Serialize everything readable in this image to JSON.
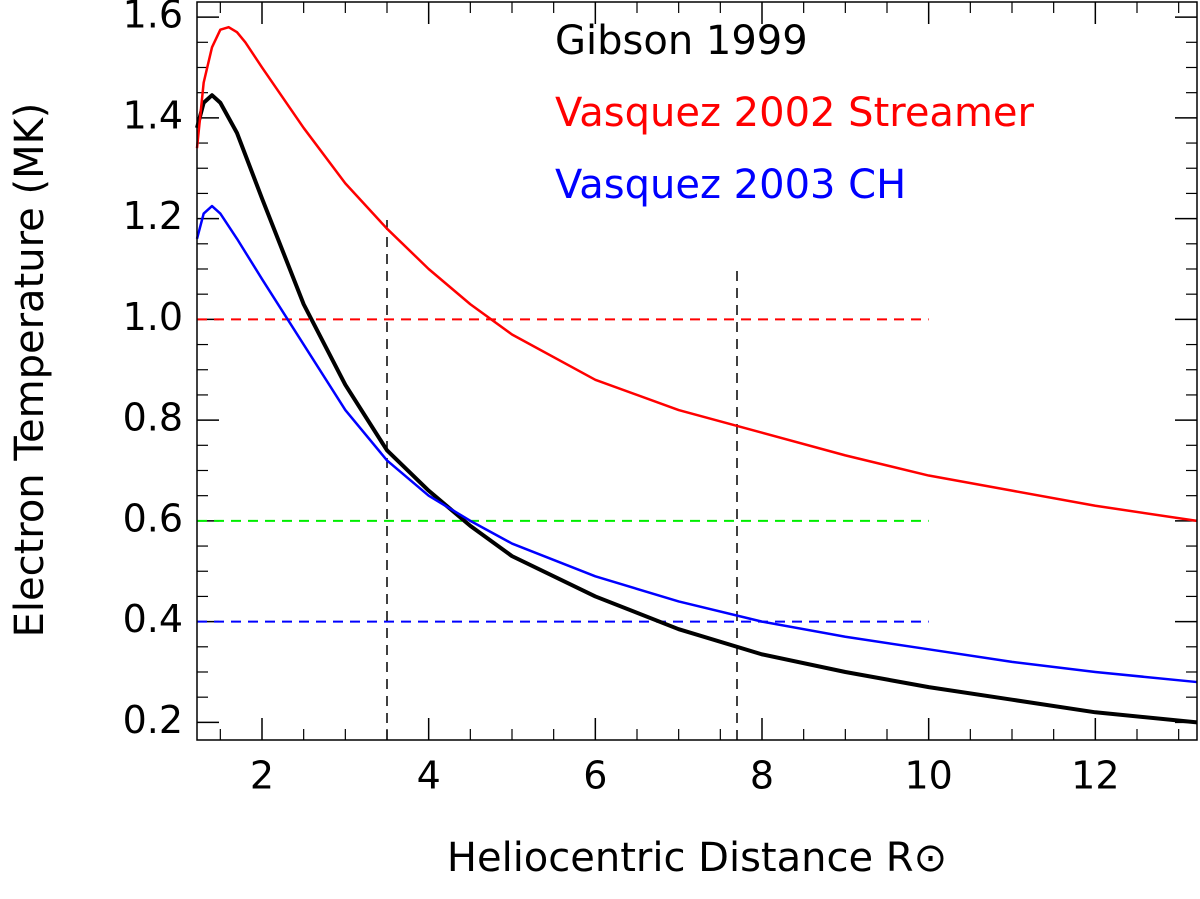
{
  "chart_data": {
    "type": "line",
    "x_label": "Heliocentric Distance R⊙",
    "y_label": "Electron Temperature (MK)",
    "xlim": [
      1.22,
      13.22
    ],
    "ylim": [
      0.165,
      1.63
    ],
    "xticks": [
      2,
      4,
      6,
      8,
      10,
      12
    ],
    "yticks": [
      {
        "value": 0.2,
        "label": "0.2"
      },
      {
        "value": 0.4,
        "label": "0.4"
      },
      {
        "value": 0.6,
        "label": "0.6"
      },
      {
        "value": 0.8,
        "label": "0.8"
      },
      {
        "value": 1.0,
        "label": "1.0"
      },
      {
        "value": 1.2,
        "label": "1.2"
      },
      {
        "value": 1.4,
        "label": "1.4"
      },
      {
        "value": 1.6,
        "label": "1.6"
      }
    ],
    "xminor": [
      1.5,
      2.5,
      3,
      3.5,
      4.5,
      5,
      5.5,
      6.5,
      7,
      7.5,
      8.5,
      9,
      9.5,
      10.5,
      11,
      11.5,
      12.5,
      13
    ],
    "yminor": [
      0.25,
      0.3,
      0.35,
      0.45,
      0.5,
      0.55,
      0.65,
      0.7,
      0.75,
      0.85,
      0.9,
      0.95,
      1.05,
      1.1,
      1.15,
      1.25,
      1.3,
      1.35,
      1.45,
      1.5,
      1.55
    ],
    "series": [
      {
        "name": "Gibson 1999",
        "color": "#000000",
        "width": 4,
        "x": [
          1.22,
          1.3,
          1.4,
          1.5,
          1.7,
          2.0,
          2.5,
          3.0,
          3.5,
          4.0,
          4.5,
          5,
          6,
          7,
          8,
          9,
          10,
          11,
          12,
          13.22
        ],
        "values": [
          1.38,
          1.43,
          1.445,
          1.43,
          1.37,
          1.24,
          1.03,
          0.87,
          0.74,
          0.66,
          0.59,
          0.53,
          0.45,
          0.385,
          0.335,
          0.3,
          0.27,
          0.245,
          0.22,
          0.2
        ]
      },
      {
        "name": "Vasquez 2002 Streamer",
        "color": "#ff0000",
        "width": 2.5,
        "x": [
          1.22,
          1.3,
          1.4,
          1.5,
          1.6,
          1.7,
          1.8,
          2.0,
          2.5,
          3.0,
          3.5,
          4.0,
          4.5,
          5,
          6,
          7,
          8,
          9,
          10,
          11,
          12,
          13.22
        ],
        "values": [
          1.34,
          1.47,
          1.54,
          1.575,
          1.58,
          1.57,
          1.55,
          1.5,
          1.38,
          1.27,
          1.18,
          1.1,
          1.03,
          0.97,
          0.88,
          0.82,
          0.775,
          0.73,
          0.69,
          0.66,
          0.63,
          0.6
        ]
      },
      {
        "name": "Vasquez 2003 CH",
        "color": "#0000ff",
        "width": 2.5,
        "x": [
          1.22,
          1.3,
          1.4,
          1.5,
          1.7,
          2.0,
          2.5,
          3.0,
          3.5,
          4.0,
          4.5,
          5,
          6,
          7,
          8,
          9,
          10,
          11,
          12,
          13.22
        ],
        "values": [
          1.16,
          1.21,
          1.225,
          1.21,
          1.16,
          1.08,
          0.95,
          0.82,
          0.72,
          0.65,
          0.6,
          0.555,
          0.49,
          0.44,
          0.4,
          0.37,
          0.345,
          0.32,
          0.3,
          0.28
        ]
      }
    ],
    "hlines": [
      {
        "y": 1.0,
        "x": [
          1.22,
          10
        ],
        "color": "#ff0000"
      },
      {
        "y": 0.6,
        "x": [
          1.22,
          10
        ],
        "color": "#00ee00"
      },
      {
        "y": 0.4,
        "x": [
          1.22,
          10
        ],
        "color": "#0000ff"
      }
    ],
    "vlines": [
      {
        "x": 3.5,
        "y": [
          0.165,
          1.21
        ],
        "color": "#000000"
      },
      {
        "x": 7.7,
        "y": [
          0.165,
          1.1
        ],
        "color": "#000000"
      }
    ]
  }
}
